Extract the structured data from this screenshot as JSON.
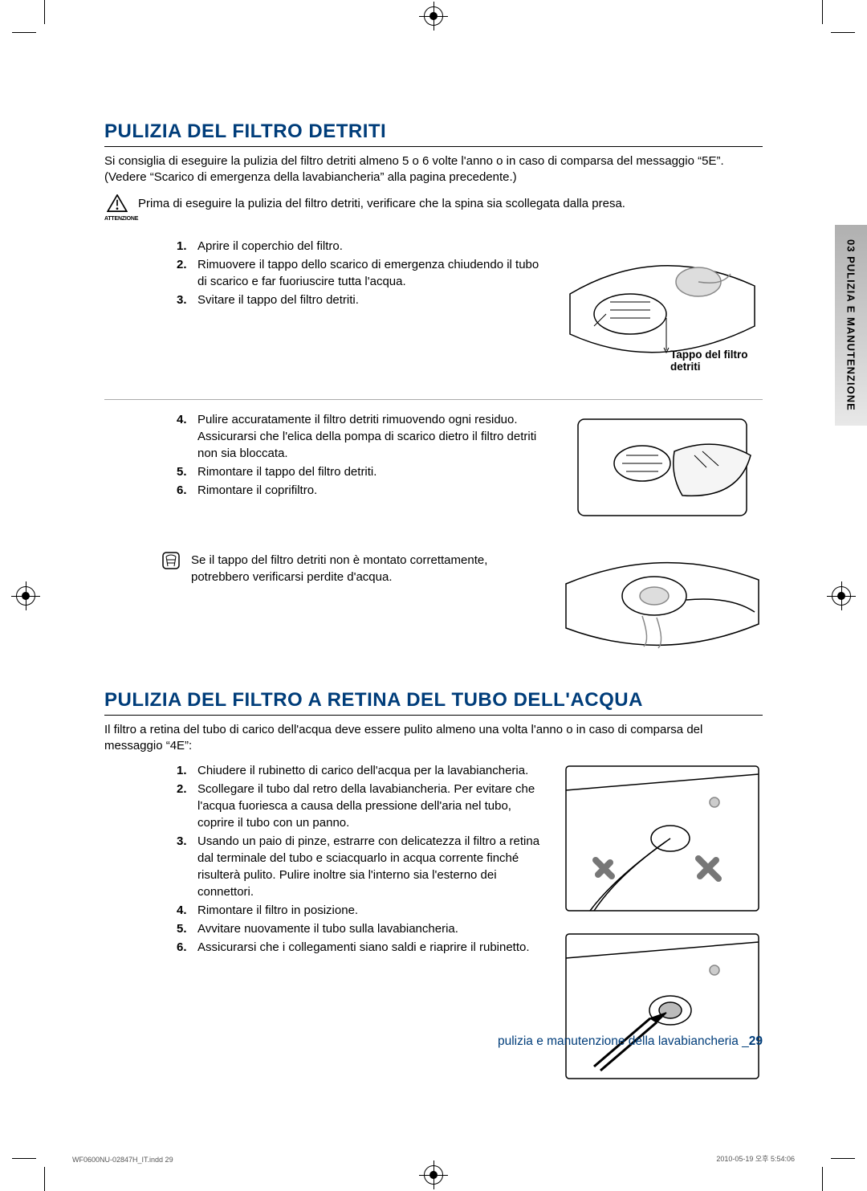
{
  "colors": {
    "heading": "#003d7a",
    "text": "#000000",
    "rule": "#000000",
    "subrule": "#aaaaaa",
    "tab_top": "#b0b0b0",
    "tab_bottom": "#e8e8e8",
    "footer": "#003d7a"
  },
  "typography": {
    "heading_fontsize": 24,
    "body_fontsize": 15,
    "caption_fontsize": 13.5,
    "footer_fontsize": 15.5,
    "imprint_fontsize": 9,
    "caution_label_fontsize": 7,
    "sidetab_fontsize": 13
  },
  "side_tab": "03  PULIZIA E MANUTENZIONE",
  "section1": {
    "title": "PULIZIA DEL FILTRO DETRITI",
    "intro": "Si consiglia di eseguire la pulizia del filtro detriti almeno 5 o 6 volte l'anno o in caso di comparsa del messaggio “5E”. (Vedere “Scarico di emergenza della lavabiancheria” alla pagina precedente.)",
    "caution_label": "ATTENZIONE",
    "caution_text": "Prima di eseguire la pulizia del filtro detriti, verificare che la spina sia scollegata dalla presa.",
    "stepsA": [
      "Aprire il coperchio del filtro.",
      "Rimuovere il tappo dello scarico di emergenza chiudendo il tubo di scarico e far fuoriuscire tutta l'acqua.",
      "Svitare il tappo del filtro detriti."
    ],
    "figA_caption": "Tappo del filtro detriti",
    "stepsB": [
      "Pulire accuratamente il filtro detriti rimuovendo ogni residuo. Assicurarsi che l'elica della pompa di scarico dietro il filtro detriti non sia bloccata.",
      "Rimontare il tappo del filtro detriti.",
      "Rimontare il coprifiltro."
    ],
    "note": "Se il tappo del filtro detriti non è montato correttamente, potrebbero verificarsi perdite d'acqua."
  },
  "section2": {
    "title": "PULIZIA DEL FILTRO A RETINA DEL TUBO DELL'ACQUA",
    "intro": "Il filtro a retina del tubo di carico dell'acqua deve essere pulito almeno una volta l'anno o in caso di comparsa del messaggio “4E”:",
    "steps": [
      "Chiudere il rubinetto di carico dell'acqua per la lavabiancheria.",
      "Scollegare il tubo dal retro della lavabiancheria. Per evitare che l'acqua fuoriesca a causa della pressione dell'aria nel tubo, coprire il tubo con un panno.",
      "Usando un paio di pinze, estrarre con delicatezza il filtro a retina dal terminale del tubo e sciacquarlo in acqua corrente finché risulterà pulito. Pulire inoltre sia l'interno sia l'esterno dei connettori.",
      "Rimontare il filtro in posizione.",
      "Avvitare nuovamente il tubo sulla lavabiancheria.",
      "Assicurarsi che i collegamenti siano saldi e riaprire il rubinetto."
    ]
  },
  "footer": {
    "text": "pulizia e manutenzione della lavabiancheria _",
    "page": "29"
  },
  "imprint": {
    "left": "WF0600NU-02847H_IT.indd   29",
    "right": "2010-05-19   오후 5:54:06"
  }
}
